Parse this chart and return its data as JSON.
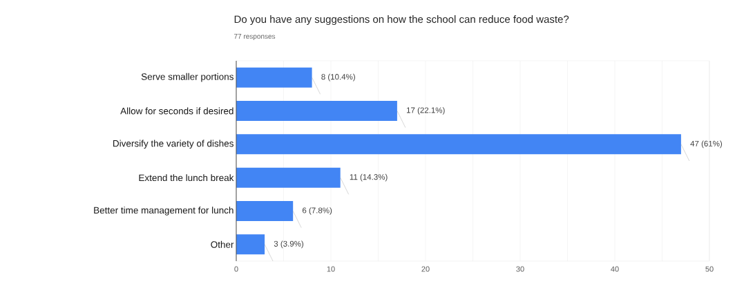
{
  "chart_data": {
    "type": "bar",
    "orientation": "horizontal",
    "title": "Do you have any suggestions on how the school can reduce food waste?",
    "subtitle": "77 responses",
    "categories": [
      "Serve smaller portions",
      "Allow for seconds if desired",
      "Diversify the variety of dishes",
      "Extend the lunch break",
      "Better time management for lunch",
      "Other"
    ],
    "values": [
      8,
      17,
      47,
      11,
      6,
      3
    ],
    "value_labels": [
      "8 (10.4%)",
      "17 (22.1%)",
      "47 (61%)",
      "11 (14.3%)",
      "6 (7.8%)",
      "3 (3.9%)"
    ],
    "color": "#4285f4",
    "xlim": [
      0,
      50
    ],
    "xticks": [
      0,
      {
        "value": 5,
        "label": null
      },
      10,
      {
        "value": 15,
        "label": null
      },
      20,
      {
        "value": 25,
        "label": null
      },
      30,
      {
        "value": 35,
        "label": null
      },
      40,
      {
        "value": 45,
        "label": null
      },
      50
    ],
    "grid": "x"
  }
}
